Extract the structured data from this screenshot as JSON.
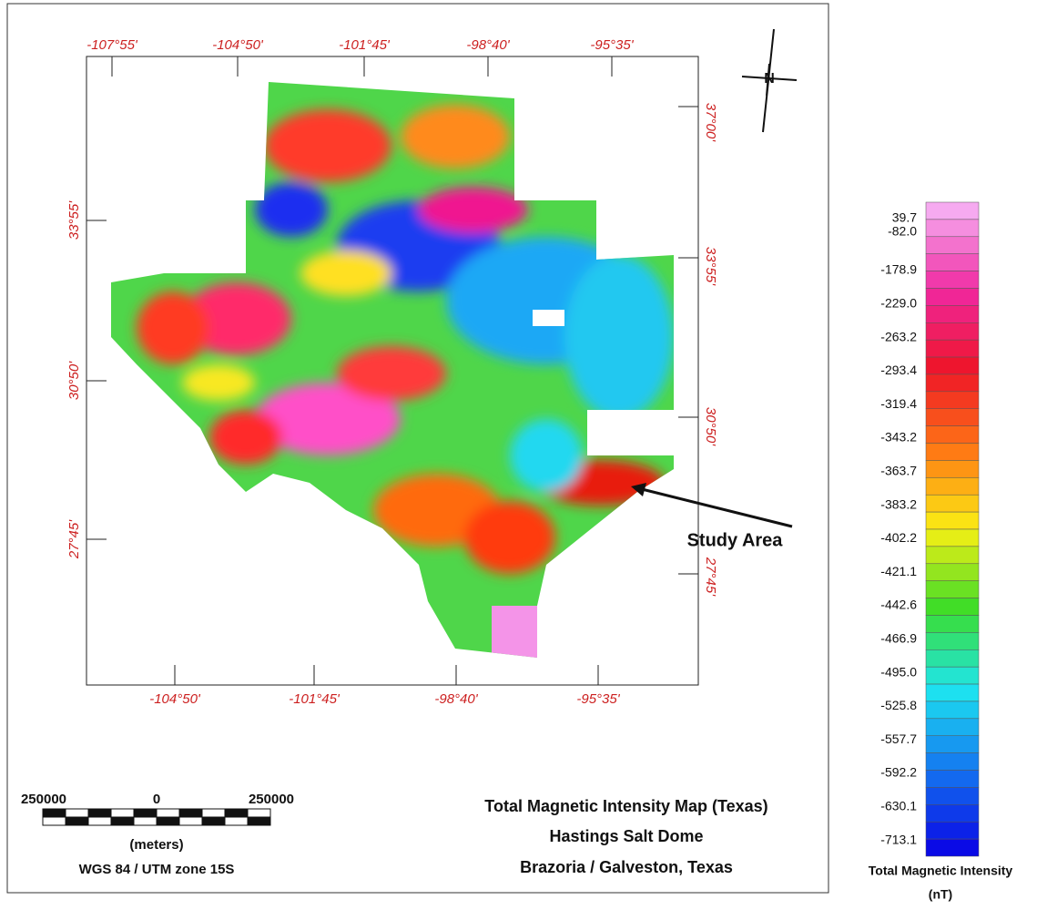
{
  "map": {
    "top_ticks": [
      "-107°55'",
      "-104°50'",
      "-101°45'",
      "-98°40'",
      "-95°35'"
    ],
    "bottom_ticks": [
      "-104°50'",
      "-101°45'",
      "-98°40'",
      "-95°35'"
    ],
    "left_ticks": [
      "33°55'",
      "30°50'",
      "27°45'"
    ],
    "right_ticks": [
      "37°00'",
      "33°55'",
      "30°50'",
      "27°45'"
    ],
    "north_arrow": "N",
    "annotation": "Study Area",
    "scale_bar": {
      "left": "250000",
      "center": "0",
      "right": "250000",
      "unit": "(meters)",
      "projection": "WGS 84 / UTM zone 15S"
    },
    "title_lines": [
      "Total Magnetic Intensity Map (Texas)",
      "Hastings Salt Dome",
      "Brazoria / Galveston, Texas"
    ],
    "legend": {
      "labels": [
        "39.7",
        "-82.0",
        "-178.9",
        "-229.0",
        "-263.2",
        "-293.4",
        "-319.4",
        "-343.2",
        "-363.7",
        "-383.2",
        "-402.2",
        "-421.1",
        "-442.6",
        "-466.9",
        "-495.0",
        "-525.8",
        "-557.7",
        "-592.2",
        "-630.1",
        "-713.1"
      ],
      "title": "Total Magnetic Intensity",
      "unit": "(nT)"
    }
  }
}
